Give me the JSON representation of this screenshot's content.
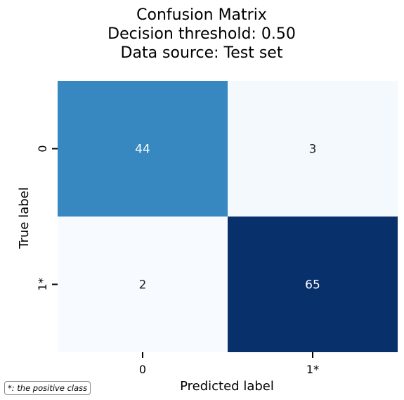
{
  "chart_data": {
    "type": "heatmap",
    "title_lines": [
      "Confusion Matrix",
      "Decision threshold: 0.50",
      "Data source: Test set"
    ],
    "xlabel": "Predicted label",
    "ylabel": "True label",
    "x_categories": [
      "0",
      "1*"
    ],
    "y_categories": [
      "0",
      "1*"
    ],
    "matrix": [
      [
        44,
        3
      ],
      [
        2,
        65
      ]
    ],
    "colormap": "Blues",
    "colors": {
      "low": "#f7fbff",
      "mid": "#3787c0",
      "high": "#08306b",
      "text_dark": "#262626",
      "text_light": "#ffffff"
    },
    "colorbar": false
  },
  "footnote": "*: the positive class"
}
